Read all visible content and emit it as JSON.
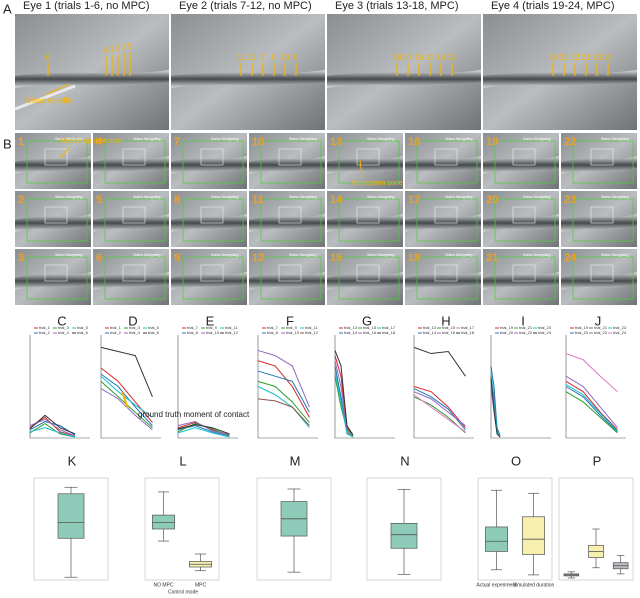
{
  "panel_labels": [
    "A",
    "B"
  ],
  "row_a": [
    {
      "title": "Eye 1 (trials 1-6, no MPC)",
      "needle_labels": [
        "6",
        "4",
        "1",
        "3",
        "2",
        "5"
      ]
    },
    {
      "title": "Eye 2 (trials 7-12, no MPC)",
      "needle_labels": [
        "11",
        "12",
        "7",
        "8",
        "10",
        "9"
      ]
    },
    {
      "title": "Eye 3 (trials 13-18, MPC)",
      "needle_labels": [
        "18",
        "17",
        "16",
        "15",
        "14",
        "13"
      ]
    },
    {
      "title": "Eye 4 (trials 19-24, MPC)",
      "needle_labels": [
        "24",
        "23",
        "22",
        "21",
        "20",
        "19"
      ]
    }
  ],
  "row_a_annotation": "Glass needle",
  "row_b": {
    "trials": [
      "1",
      "2",
      "3",
      "4",
      "5",
      "6",
      "7",
      "8",
      "9",
      "10",
      "11",
      "12",
      "13",
      "14",
      "15",
      "16",
      "17",
      "18",
      "19",
      "20",
      "21",
      "22",
      "23",
      "24"
    ],
    "status": "Status Navigating",
    "annotations": [
      "Needle tip detection",
      "Perception zone"
    ]
  },
  "line_annotation": "ground truth moment of contact",
  "line_panels": [
    {
      "label": "C",
      "x": [
        0,
        15,
        30,
        45
      ],
      "xlim": [
        0,
        60
      ],
      "ylim": [
        0,
        100
      ],
      "series": [
        {
          "name": "trial_1",
          "color": "#d62728",
          "values": [
            10,
            20,
            6,
            2
          ]
        },
        {
          "name": "trial_2",
          "color": "#1f77b4",
          "values": [
            8,
            16,
            12,
            3
          ]
        },
        {
          "name": "trial_3",
          "color": "#2ca02c",
          "values": [
            5,
            14,
            4,
            1
          ]
        },
        {
          "name": "trial_4",
          "color": "#9467bd",
          "values": [
            12,
            18,
            8,
            2
          ]
        },
        {
          "name": "trial_5",
          "color": "#17becf",
          "values": [
            6,
            10,
            5,
            1
          ]
        },
        {
          "name": "trial_6",
          "color": "#333333",
          "values": [
            9,
            22,
            10,
            4
          ]
        }
      ]
    },
    {
      "label": "D",
      "x": [
        0,
        2,
        4,
        6
      ],
      "xlim": [
        0,
        7
      ],
      "ylim": [
        0,
        100
      ],
      "series": [
        {
          "name": "trial_1",
          "color": "#d62728",
          "values": [
            68,
            55,
            35,
            15
          ]
        },
        {
          "name": "trial_2",
          "color": "#1f77b4",
          "values": [
            62,
            50,
            30,
            12
          ]
        },
        {
          "name": "trial_3",
          "color": "#2ca02c",
          "values": [
            55,
            40,
            25,
            10
          ]
        },
        {
          "name": "trial_4",
          "color": "#9467bd",
          "values": [
            48,
            38,
            22,
            8
          ]
        },
        {
          "name": "trial_5",
          "color": "#17becf",
          "values": [
            60,
            45,
            32,
            20
          ]
        },
        {
          "name": "trial_6",
          "color": "#333333",
          "values": [
            88,
            84,
            80,
            40
          ]
        }
      ]
    },
    {
      "label": "E",
      "x": [
        0,
        2,
        4,
        6
      ],
      "xlim": [
        0,
        7
      ],
      "ylim": [
        0,
        100
      ],
      "series": [
        {
          "name": "trial_7",
          "color": "#d62728",
          "values": [
            10,
            15,
            8,
            3
          ]
        },
        {
          "name": "trial_8",
          "color": "#1f77b4",
          "values": [
            8,
            12,
            6,
            2
          ]
        },
        {
          "name": "trial_9",
          "color": "#2ca02c",
          "values": [
            6,
            14,
            9,
            2
          ]
        },
        {
          "name": "trial_10",
          "color": "#9467bd",
          "values": [
            12,
            16,
            7,
            3
          ]
        },
        {
          "name": "trial_11",
          "color": "#17becf",
          "values": [
            5,
            10,
            5,
            1
          ]
        },
        {
          "name": "trial_12",
          "color": "#333333",
          "values": [
            9,
            13,
            10,
            4
          ]
        }
      ]
    },
    {
      "label": "F",
      "x": [
        0,
        2,
        4,
        6
      ],
      "xlim": [
        0,
        7
      ],
      "ylim": [
        0,
        100
      ],
      "series": [
        {
          "name": "trial_7",
          "color": "#d62728",
          "values": [
            75,
            70,
            50,
            20
          ]
        },
        {
          "name": "trial_8",
          "color": "#1f77b4",
          "values": [
            65,
            60,
            55,
            25
          ]
        },
        {
          "name": "trial_9",
          "color": "#2ca02c",
          "values": [
            55,
            50,
            35,
            15
          ]
        },
        {
          "name": "trial_10",
          "color": "#9467bd",
          "values": [
            85,
            80,
            70,
            30
          ]
        },
        {
          "name": "trial_11",
          "color": "#17becf",
          "values": [
            50,
            42,
            30,
            10
          ]
        },
        {
          "name": "trial_12",
          "color": "#8c564b",
          "values": [
            38,
            36,
            30,
            12
          ]
        }
      ]
    },
    {
      "label": "G",
      "x": [
        0,
        1,
        2,
        3
      ],
      "xlim": [
        0,
        10
      ],
      "ylim": [
        0,
        100
      ],
      "series": [
        {
          "name": "trial_13",
          "color": "#d62728",
          "values": [
            80,
            60,
            10,
            2
          ]
        },
        {
          "name": "trial_14",
          "color": "#1f77b4",
          "values": [
            70,
            40,
            5,
            1
          ]
        },
        {
          "name": "trial_15",
          "color": "#2ca02c",
          "values": [
            60,
            30,
            8,
            2
          ]
        },
        {
          "name": "trial_16",
          "color": "#9467bd",
          "values": [
            75,
            50,
            6,
            1
          ]
        },
        {
          "name": "trial_17",
          "color": "#17becf",
          "values": [
            65,
            35,
            4,
            1
          ]
        },
        {
          "name": "trial_18",
          "color": "#333333",
          "values": [
            85,
            70,
            12,
            3
          ]
        }
      ]
    },
    {
      "label": "H",
      "x": [
        0,
        2,
        4,
        6
      ],
      "xlim": [
        0,
        7
      ],
      "ylim": [
        0,
        100
      ],
      "series": [
        {
          "name": "trial_13",
          "color": "#d62728",
          "values": [
            50,
            45,
            30,
            10
          ]
        },
        {
          "name": "trial_14",
          "color": "#1f77b4",
          "values": [
            48,
            40,
            28,
            8
          ]
        },
        {
          "name": "trial_15",
          "color": "#2ca02c",
          "values": [
            40,
            32,
            20,
            5
          ]
        },
        {
          "name": "trial_16",
          "color": "#9467bd",
          "values": [
            45,
            38,
            25,
            12
          ]
        },
        {
          "name": "trial_17",
          "color": "#e377c2",
          "values": [
            42,
            30,
            18,
            6
          ]
        },
        {
          "name": "trial_18",
          "color": "#333333",
          "values": [
            88,
            82,
            84,
            60
          ]
        }
      ]
    },
    {
      "label": "I",
      "x": [
        0,
        1,
        2,
        3
      ],
      "xlim": [
        0,
        20
      ],
      "ylim": [
        0,
        100
      ],
      "series": [
        {
          "name": "trial_19",
          "color": "#d62728",
          "values": [
            60,
            40,
            8,
            2
          ]
        },
        {
          "name": "trial_20",
          "color": "#1f77b4",
          "values": [
            70,
            50,
            10,
            3
          ]
        },
        {
          "name": "trial_21",
          "color": "#2ca02c",
          "values": [
            55,
            30,
            6,
            1
          ]
        },
        {
          "name": "trial_22",
          "color": "#9467bd",
          "values": [
            50,
            25,
            5,
            1
          ]
        },
        {
          "name": "trial_23",
          "color": "#17becf",
          "values": [
            65,
            35,
            7,
            2
          ]
        },
        {
          "name": "trial_24",
          "color": "#333333",
          "values": [
            58,
            28,
            4,
            1
          ]
        }
      ]
    },
    {
      "label": "J",
      "x": [
        0,
        2,
        4,
        6
      ],
      "xlim": [
        0,
        7
      ],
      "ylim": [
        0,
        100
      ],
      "series": [
        {
          "name": "trial_19",
          "color": "#d62728",
          "values": [
            55,
            45,
            25,
            8
          ]
        },
        {
          "name": "trial_20",
          "color": "#1f77b4",
          "values": [
            50,
            40,
            22,
            6
          ]
        },
        {
          "name": "trial_21",
          "color": "#2ca02c",
          "values": [
            45,
            35,
            20,
            5
          ]
        },
        {
          "name": "trial_22",
          "color": "#9467bd",
          "values": [
            60,
            50,
            30,
            10
          ]
        },
        {
          "name": "trial_23",
          "color": "#17becf",
          "values": [
            52,
            42,
            24,
            7
          ]
        },
        {
          "name": "trial_24",
          "color": "#e377c2",
          "values": [
            82,
            76,
            60,
            45
          ]
        }
      ]
    }
  ],
  "box_panels": [
    {
      "label": "K",
      "ylim": [
        0,
        110
      ],
      "boxes": [
        {
          "color": "#8ecbb9",
          "stats": [
            3,
            45,
            62,
            93,
            100
          ]
        }
      ]
    },
    {
      "label": "L",
      "ylim": [
        0,
        110
      ],
      "xlabel": "Control mode",
      "boxes": [
        {
          "name": "NO MPC",
          "color": "#8ecbb9",
          "stats": [
            42,
            55,
            62,
            70,
            95
          ]
        },
        {
          "name": "MPC",
          "color": "#f6efb0",
          "stats": [
            10,
            14,
            17,
            20,
            28
          ]
        }
      ]
    },
    {
      "label": "M",
      "ylim": [
        16.5,
        23
      ],
      "boxes": [
        {
          "color": "#8ecbb9",
          "stats": [
            17,
            19.3,
            20.4,
            21.5,
            22.3
          ]
        }
      ]
    },
    {
      "label": "N",
      "ylim": [
        0,
        90
      ],
      "boxes": [
        {
          "color": "#8ecbb9",
          "stats": [
            5,
            28,
            40,
            50,
            80
          ]
        }
      ]
    },
    {
      "label": "O",
      "ylim": [
        0,
        100
      ],
      "boxes": [
        {
          "name": "Actual experiment",
          "color": "#8ecbb9",
          "stats": [
            10,
            28,
            38,
            52,
            88
          ]
        },
        {
          "name": "Simulated duration",
          "color": "#f6efb0",
          "stats": [
            5,
            25,
            40,
            62,
            85
          ]
        }
      ]
    },
    {
      "label": "P",
      "ylim": [
        0,
        100
      ],
      "boxes": [
        {
          "color": "#a9b8c9",
          "stats": [
            2,
            4,
            5,
            6,
            8
          ]
        },
        {
          "color": "#f6efb0",
          "stats": [
            12,
            22,
            28,
            34,
            50
          ]
        },
        {
          "color": "#b8bcc2",
          "stats": [
            6,
            11,
            14,
            17,
            24
          ]
        }
      ]
    }
  ]
}
